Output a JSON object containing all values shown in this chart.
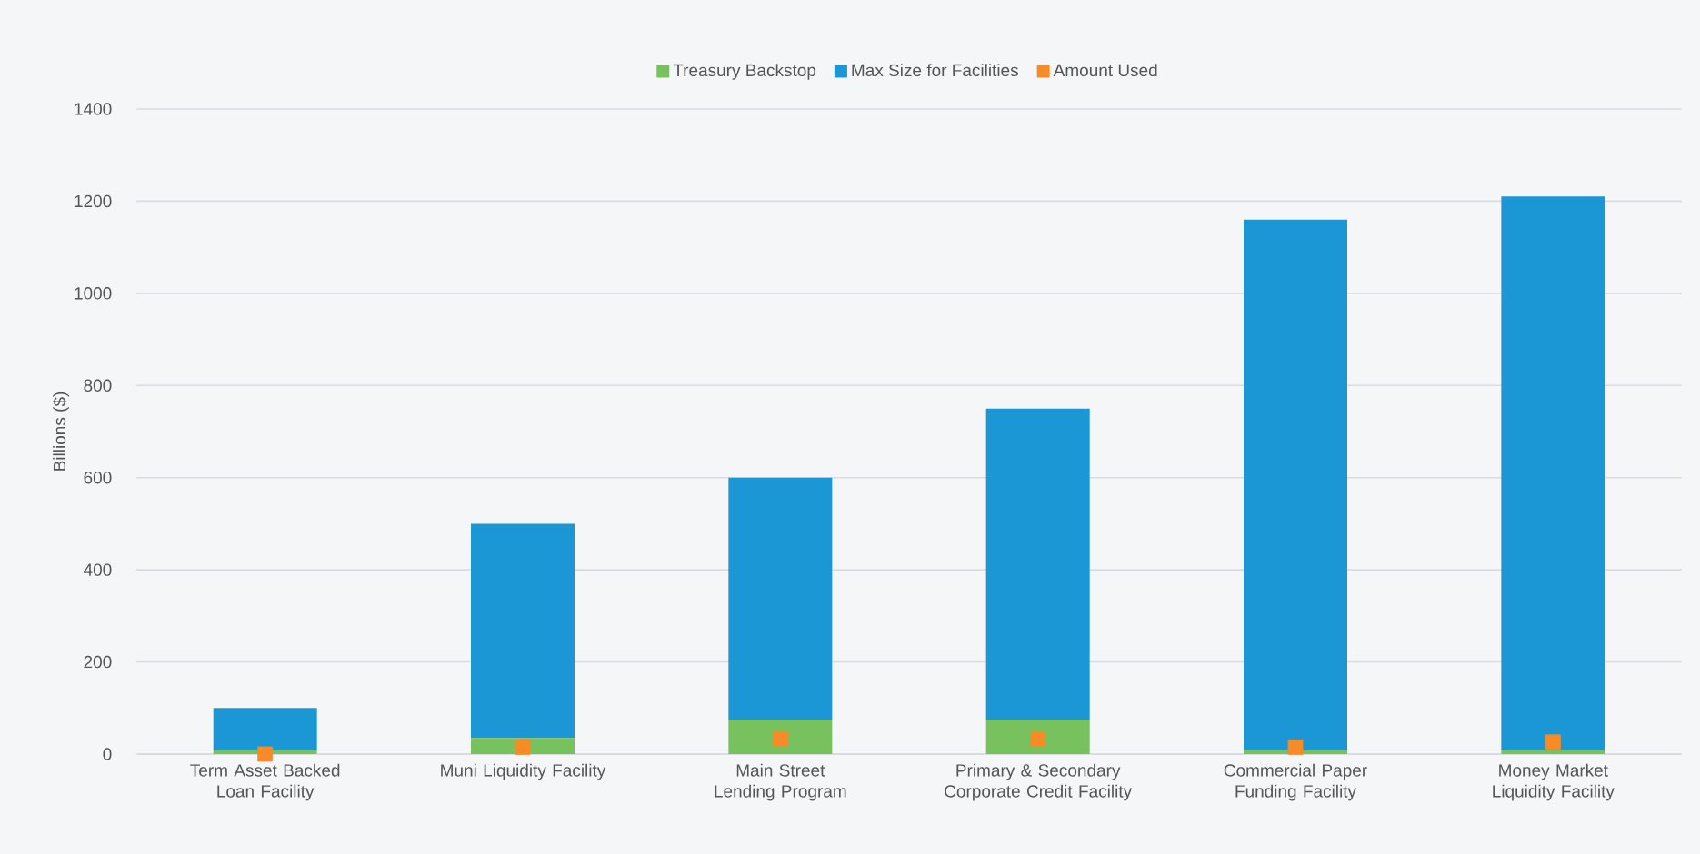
{
  "chart_data": {
    "type": "bar",
    "stacked": true,
    "ylabel": "Billions ($)",
    "categories": [
      "Term Asset Backed Loan Facility",
      "Muni Liquidity Facility",
      "Main Street Lending Program",
      "Primary & Secondary Corporate Credit Facility",
      "Commercial Paper Funding Facility",
      "Money Market Liquidity Facility"
    ],
    "series": [
      {
        "name": "Treasury Backstop",
        "color": "#77c25e",
        "values": [
          10,
          35,
          75,
          75,
          10,
          10
        ]
      },
      {
        "name": "Max Size for Facilities",
        "color": "#1b97d5",
        "values": [
          90,
          465,
          525,
          675,
          1150,
          1200
        ]
      },
      {
        "name": "Amount Used",
        "type": "scatter",
        "color": "#f68b27",
        "x": [
          "Term Asset Backed Loan Facility",
          "Muni Liquidity Facility",
          "Main Street Lending Program",
          "Primary & Secondary Corporate Credit Facility",
          "Commercial Paper Funding Facility",
          "Money Market Liquidity Facility"
        ],
        "values": [
          0,
          15,
          33,
          33,
          15,
          26
        ]
      }
    ],
    "ylim": [
      0,
      1400
    ],
    "yticks": [
      0,
      200,
      400,
      600,
      800,
      1000,
      1200,
      1400
    ],
    "grid": "y",
    "legend": "top",
    "marker": "square"
  }
}
